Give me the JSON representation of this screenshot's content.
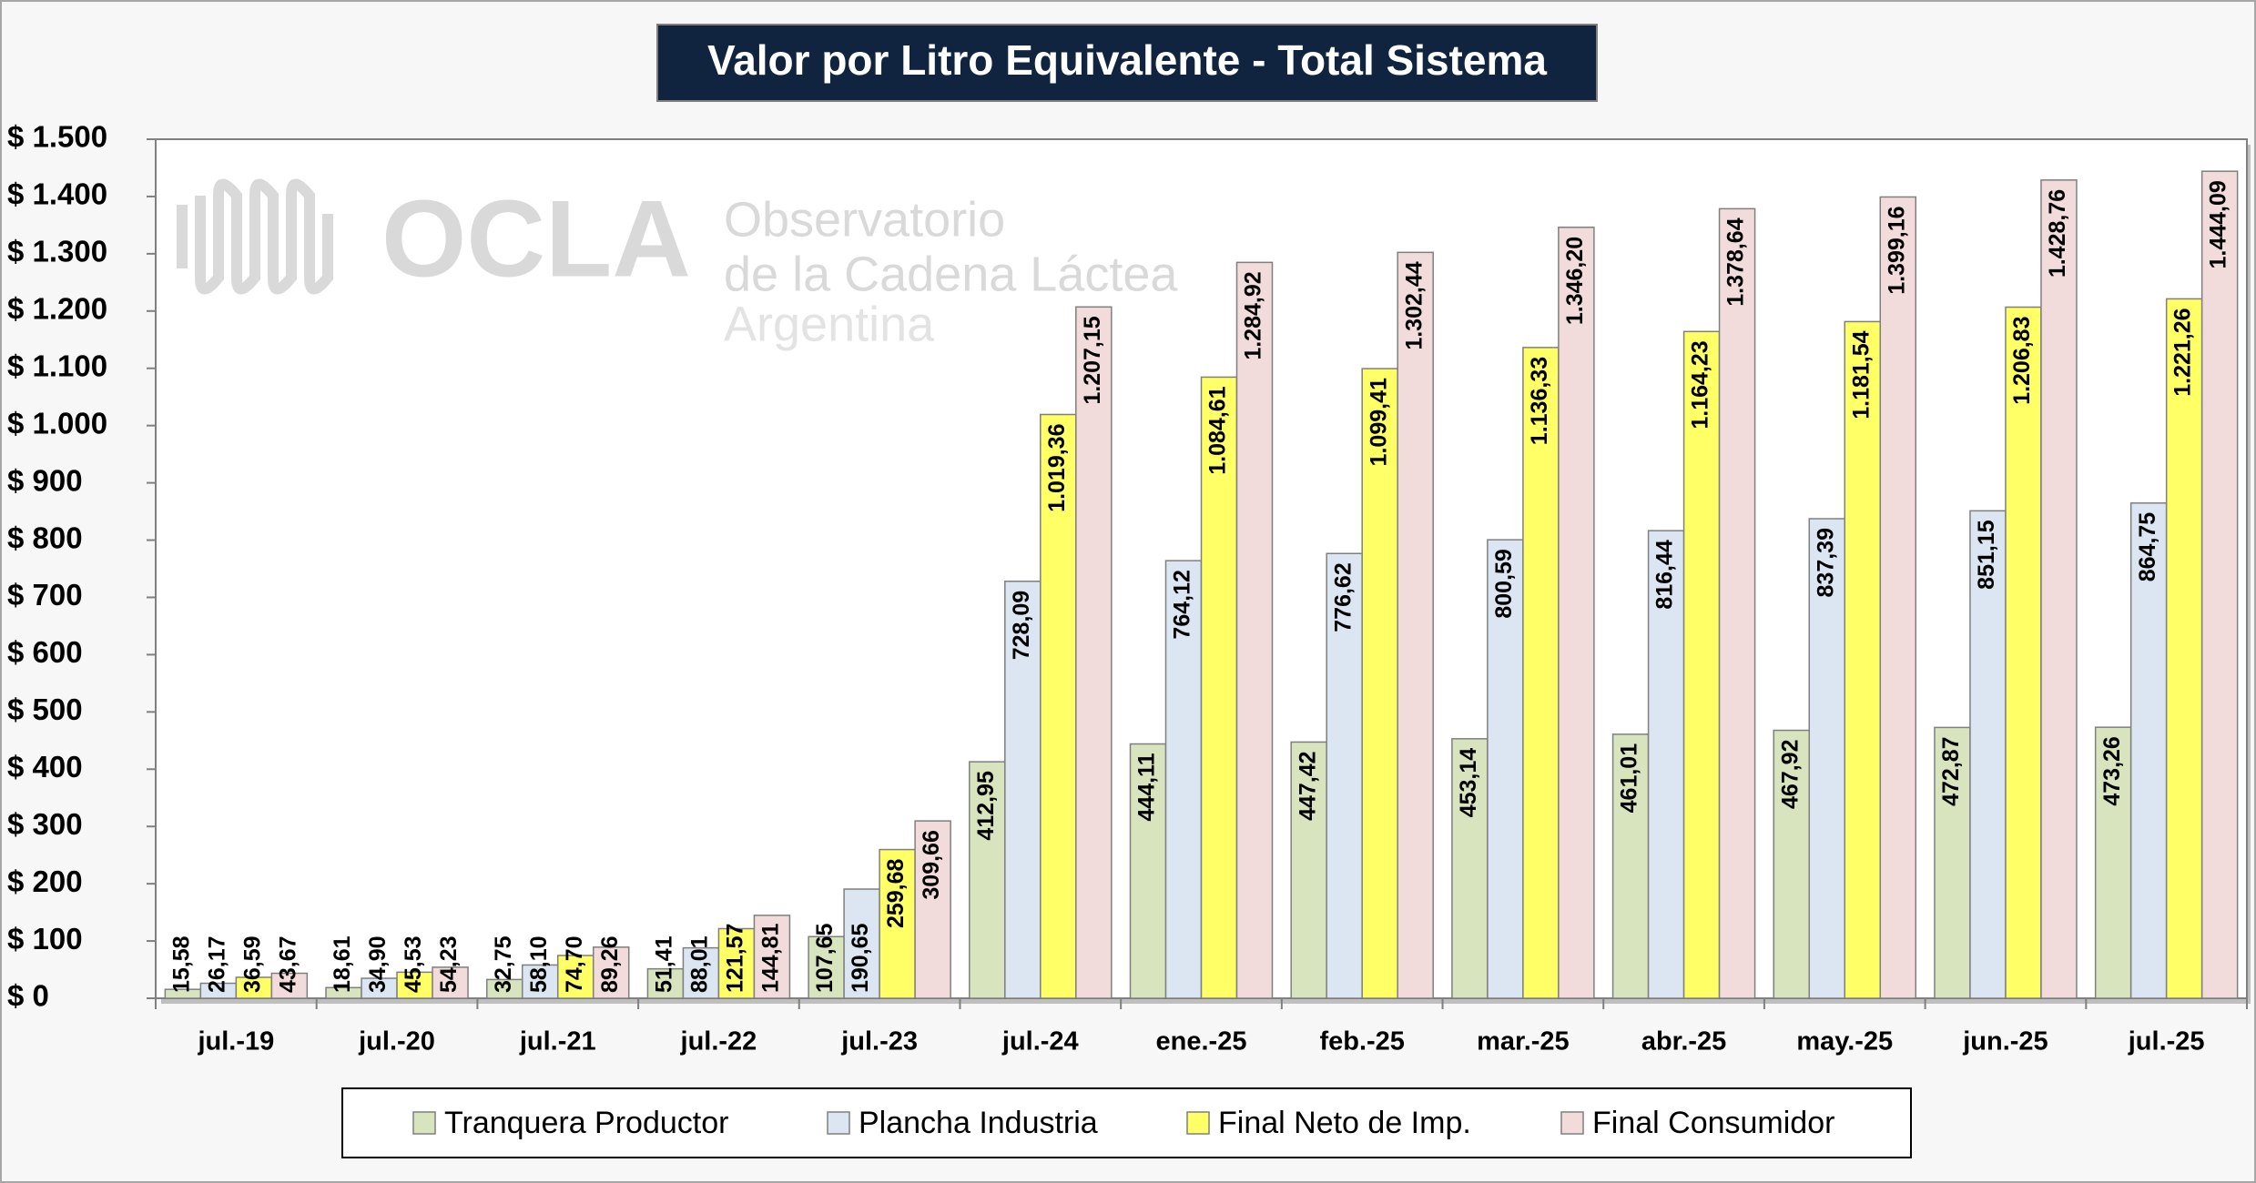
{
  "chart_data": {
    "type": "bar",
    "title": "Valor por Litro Equivalente - Total Sistema",
    "watermark": {
      "logo": "OCLA",
      "lines": [
        "Observatorio",
        "de la Cadena Láctea",
        "Argentina"
      ]
    },
    "categories": [
      "jul.-19",
      "jul.-20",
      "jul.-21",
      "jul.-22",
      "jul.-23",
      "jul.-24",
      "ene.-25",
      "feb.-25",
      "mar.-25",
      "abr.-25",
      "may.-25",
      "jun.-25",
      "jul.-25"
    ],
    "series": [
      {
        "name": "Tranquera Productor",
        "color": "#d7e4bd",
        "values": [
          15.58,
          18.61,
          32.75,
          51.41,
          107.65,
          412.95,
          444.11,
          447.42,
          453.14,
          461.01,
          467.92,
          472.87,
          473.26
        ],
        "value_labels": [
          "15,58",
          "18,61",
          "32,75",
          "51,41",
          "107,65",
          "412,95",
          "444,11",
          "447,42",
          "453,14",
          "461,01",
          "467,92",
          "472,87",
          "473,26"
        ]
      },
      {
        "name": "Plancha Industria",
        "color": "#dce6f2",
        "values": [
          26.17,
          34.9,
          58.1,
          88.01,
          190.65,
          728.09,
          764.12,
          776.62,
          800.59,
          816.44,
          837.39,
          851.15,
          864.75
        ],
        "value_labels": [
          "26,17",
          "34,90",
          "58,10",
          "88,01",
          "190,65",
          "728,09",
          "764,12",
          "776,62",
          "800,59",
          "816,44",
          "837,39",
          "851,15",
          "864,75"
        ]
      },
      {
        "name": "Final Neto de Imp.",
        "color": "#ffff66",
        "values": [
          36.59,
          45.53,
          74.7,
          121.57,
          259.68,
          1019.36,
          1084.61,
          1099.41,
          1136.33,
          1164.23,
          1181.54,
          1206.83,
          1221.26
        ],
        "value_labels": [
          "36,59",
          "45,53",
          "74,70",
          "121,57",
          "259,68",
          "1.019,36",
          "1.084,61",
          "1.099,41",
          "1.136,33",
          "1.164,23",
          "1.181,54",
          "1.206,83",
          "1.221,26"
        ]
      },
      {
        "name": "Final Consumidor",
        "color": "#f2dcdb",
        "values": [
          43.67,
          54.23,
          89.26,
          144.81,
          309.66,
          1207.15,
          1284.92,
          1302.44,
          1346.2,
          1378.64,
          1399.16,
          1428.76,
          1444.09
        ],
        "value_labels": [
          "43,67",
          "54,23",
          "89,26",
          "144,81",
          "309,66",
          "1.207,15",
          "1.284,92",
          "1.302,44",
          "1.346,20",
          "1.378,64",
          "1.399,16",
          "1.428,76",
          "1.444,09"
        ]
      }
    ],
    "ylim": [
      0,
      1500
    ],
    "yticks": [
      {
        "value": 0,
        "label": "$ 0"
      },
      {
        "value": 100,
        "label": "$ 100"
      },
      {
        "value": 200,
        "label": "$ 200"
      },
      {
        "value": 300,
        "label": "$ 300"
      },
      {
        "value": 400,
        "label": "$ 400"
      },
      {
        "value": 500,
        "label": "$ 500"
      },
      {
        "value": 600,
        "label": "$ 600"
      },
      {
        "value": 700,
        "label": "$ 700"
      },
      {
        "value": 800,
        "label": "$ 800"
      },
      {
        "value": 900,
        "label": "$ 900"
      },
      {
        "value": 1000,
        "label": "$ 1.000"
      },
      {
        "value": 1100,
        "label": "$ 1.100"
      },
      {
        "value": 1200,
        "label": "$ 1.200"
      },
      {
        "value": 1300,
        "label": "$ 1.300"
      },
      {
        "value": 1400,
        "label": "$ 1.400"
      },
      {
        "value": 1500,
        "label": "$ 1.500"
      }
    ],
    "grid": false,
    "legend": "bottom"
  }
}
